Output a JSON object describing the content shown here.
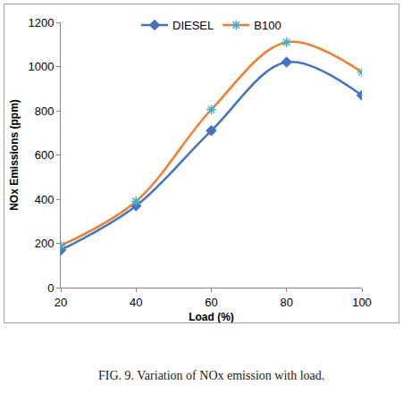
{
  "chart_data": {
    "type": "line",
    "title": "FIG. 9. Variation of NOx emission with load.",
    "x_label": "Load (%)",
    "y_label": "NOx Emissions (ppm)",
    "x": [
      20,
      40,
      60,
      80,
      100
    ],
    "series": [
      {
        "name": "DIESEL",
        "color": "#4472c4",
        "marker": "diamond",
        "line_style": "smooth",
        "values": [
          170,
          370,
          710,
          1020,
          870
        ]
      },
      {
        "name": "B100",
        "color": "#ed7d31",
        "marker": "asterisk",
        "line_style": "smooth",
        "values": [
          190,
          390,
          805,
          1110,
          975
        ]
      }
    ],
    "xlim": [
      20,
      100
    ],
    "xticks": [
      20,
      40,
      60,
      80,
      100
    ],
    "ylim": [
      0,
      1200
    ],
    "yticks": [
      0,
      200,
      400,
      600,
      800,
      1000,
      1200
    ],
    "grid": false,
    "legend": "top"
  }
}
